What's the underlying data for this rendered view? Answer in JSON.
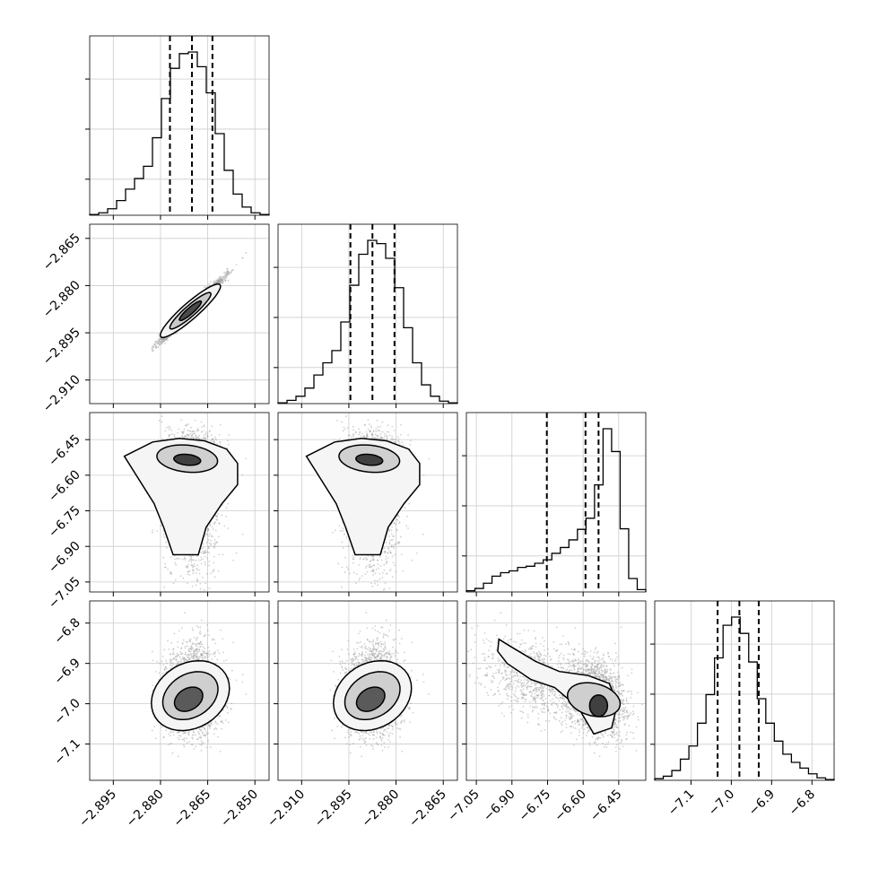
{
  "chart_data": {
    "type": "corner",
    "parameters": 4,
    "axes_ranges": [
      [
        -2.9025,
        -2.8455
      ],
      [
        -2.9175,
        -2.8605
      ],
      [
        -7.092,
        -6.336
      ],
      [
        -7.19,
        -6.745
      ]
    ],
    "tick_labels": [
      [
        "−2.895",
        "−2.880",
        "−2.865",
        "−2.850"
      ],
      [
        "−2.910",
        "−2.895",
        "−2.880",
        "−2.865"
      ],
      [
        "−7.05",
        "−6.90",
        "−6.75",
        "−6.60",
        "−6.45"
      ],
      [
        "−7.1",
        "−7.0",
        "−6.9",
        "−6.8"
      ]
    ],
    "tick_values": [
      [
        -2.895,
        -2.88,
        -2.865,
        -2.85
      ],
      [
        -2.91,
        -2.895,
        -2.88,
        -2.865
      ],
      [
        -7.05,
        -6.9,
        -6.75,
        -6.6,
        -6.45
      ],
      [
        -7.1,
        -7.0,
        -6.9,
        -6.8
      ]
    ],
    "quantiles": [
      [
        -2.877,
        -2.87,
        -2.8635
      ],
      [
        -2.8945,
        -2.8875,
        -2.8805
      ],
      [
        -6.753,
        -6.59,
        -6.535
      ],
      [
        -7.034,
        -6.98,
        -6.932
      ]
    ],
    "histograms": [
      [
        1,
        3,
        8,
        18,
        32,
        45,
        60,
        95,
        143,
        180,
        198,
        200,
        182,
        150,
        100,
        55,
        26,
        10,
        3,
        1
      ],
      [
        1,
        4,
        9,
        19,
        35,
        50,
        65,
        100,
        145,
        183,
        200,
        196,
        178,
        142,
        93,
        50,
        23,
        9,
        3,
        1
      ],
      [
        2,
        6,
        15,
        27,
        33,
        36,
        42,
        44,
        49,
        55,
        66,
        76,
        89,
        107,
        126,
        183,
        279,
        240,
        108,
        23,
        4
      ],
      [
        2,
        5,
        12,
        26,
        42,
        70,
        105,
        150,
        190,
        200,
        180,
        145,
        100,
        70,
        48,
        32,
        22,
        15,
        8,
        3,
        1
      ]
    ],
    "grid": true,
    "legend": "none"
  }
}
